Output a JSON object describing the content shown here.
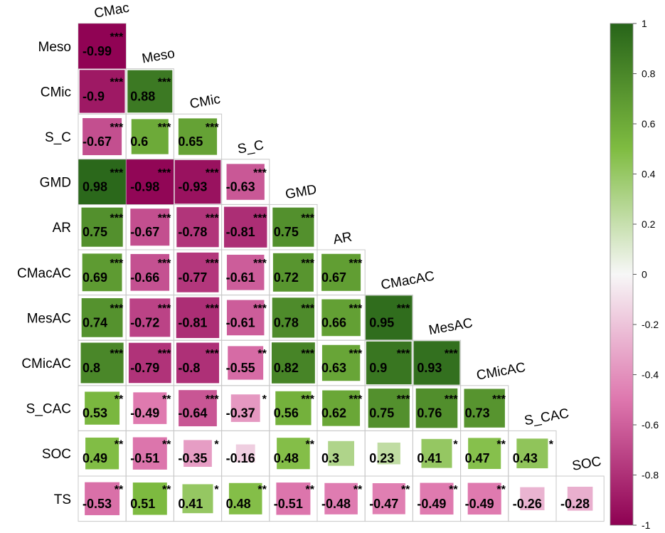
{
  "chart_data": {
    "type": "heatmap",
    "title": "",
    "variables": [
      "CMac",
      "Meso",
      "CMic",
      "S_C",
      "GMD",
      "AR",
      "CMacAC",
      "MesAC",
      "CMicAC",
      "S_CAC",
      "SOC",
      "TS"
    ],
    "row_labels": [
      "Meso",
      "CMic",
      "S_C",
      "GMD",
      "AR",
      "CMacAC",
      "MesAC",
      "CMicAC",
      "S_CAC",
      "SOC",
      "TS"
    ],
    "column_labels": [
      "CMac",
      "Meso",
      "CMic",
      "S_C",
      "GMD",
      "AR",
      "CMacAC",
      "MesAC",
      "CMicAC",
      "S_CAC",
      "SOC"
    ],
    "values": [
      [
        -0.99
      ],
      [
        -0.9,
        0.88
      ],
      [
        -0.67,
        0.6,
        0.65
      ],
      [
        0.98,
        -0.98,
        -0.93,
        -0.63
      ],
      [
        0.75,
        -0.67,
        -0.78,
        -0.81,
        0.75
      ],
      [
        0.69,
        -0.66,
        -0.77,
        -0.61,
        0.72,
        0.67
      ],
      [
        0.74,
        -0.72,
        -0.81,
        -0.61,
        0.78,
        0.66,
        0.95
      ],
      [
        0.8,
        -0.79,
        -0.8,
        -0.55,
        0.82,
        0.63,
        0.9,
        0.93
      ],
      [
        0.53,
        -0.49,
        -0.64,
        -0.37,
        0.56,
        0.62,
        0.75,
        0.76,
        0.73
      ],
      [
        0.49,
        -0.51,
        -0.35,
        -0.16,
        0.48,
        0.3,
        0.23,
        0.41,
        0.47,
        0.43
      ],
      [
        -0.53,
        0.51,
        0.41,
        0.48,
        -0.51,
        -0.48,
        -0.47,
        -0.49,
        -0.49,
        -0.26,
        -0.28
      ]
    ],
    "value_labels": [
      [
        "-0.99"
      ],
      [
        "-0.9",
        "0.88"
      ],
      [
        "-0.67",
        "0.6",
        "0.65"
      ],
      [
        "0.98",
        "-0.98",
        "-0.93",
        "-0.63"
      ],
      [
        "0.75",
        "-0.67",
        "-0.78",
        "-0.81",
        "0.75"
      ],
      [
        "0.69",
        "-0.66",
        "-0.77",
        "-0.61",
        "0.72",
        "0.67"
      ],
      [
        "0.74",
        "-0.72",
        "-0.81",
        "-0.61",
        "0.78",
        "0.66",
        "0.95"
      ],
      [
        "0.8",
        "-0.79",
        "-0.8",
        "-0.55",
        "0.82",
        "0.63",
        "0.9",
        "0.93"
      ],
      [
        "0.53",
        "-0.49",
        "-0.64",
        "-0.37",
        "0.56",
        "0.62",
        "0.75",
        "0.76",
        "0.73"
      ],
      [
        "0.49",
        "-0.51",
        "-0.35",
        "-0.16",
        "0.48",
        "0.3",
        "0.23",
        "0.41",
        "0.47",
        "0.43"
      ],
      [
        "-0.53",
        "0.51",
        "0.41",
        "0.48",
        "-0.51",
        "-0.48",
        "-0.47",
        "-0.49",
        "-0.49",
        "-0.26",
        "-0.28"
      ]
    ],
    "significance": [
      [
        "***"
      ],
      [
        "***",
        "***"
      ],
      [
        "***",
        "***",
        "***"
      ],
      [
        "***",
        "***",
        "***",
        "***"
      ],
      [
        "***",
        "***",
        "***",
        "***",
        "***"
      ],
      [
        "***",
        "***",
        "***",
        "***",
        "***",
        "***"
      ],
      [
        "***",
        "***",
        "***",
        "***",
        "***",
        "***",
        "***"
      ],
      [
        "***",
        "***",
        "***",
        "**",
        "***",
        "***",
        "***",
        "***"
      ],
      [
        "**",
        "**",
        "***",
        "*",
        "***",
        "***",
        "***",
        "***",
        "***"
      ],
      [
        "**",
        "**",
        "*",
        "",
        "**",
        "",
        "",
        "*",
        "**",
        "*"
      ],
      [
        "**",
        "**",
        "*",
        "**",
        "**",
        "**",
        "**",
        "**",
        "**",
        "",
        ""
      ]
    ],
    "colorbar": {
      "range": [
        -1,
        1
      ],
      "ticks": [
        "1",
        "0.8",
        "0.6",
        "0.4",
        "0.2",
        "0",
        "-0.2",
        "-0.4",
        "-0.6",
        "-0.8",
        "-1"
      ],
      "colors": {
        "negative": "#8e0152",
        "mid_negative": "#de77ae",
        "zero": "#f7f7f7",
        "mid_positive": "#7fbc41",
        "positive": "#276419"
      },
      "placement": "right"
    },
    "grid": true,
    "legend": "right"
  }
}
